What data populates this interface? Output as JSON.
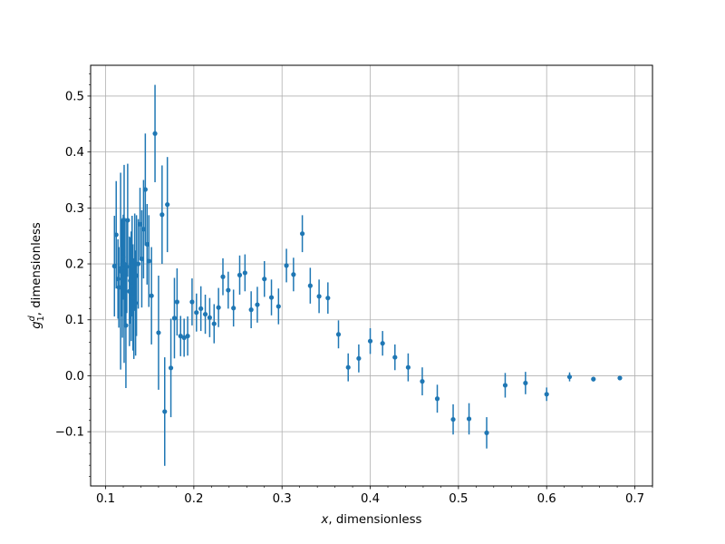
{
  "chart_data": {
    "type": "scatter",
    "title": "",
    "xlabel": {
      "math": "x",
      "text": ", dimensionless"
    },
    "ylabel": {
      "math": "g",
      "sup": "d",
      "sub": "1",
      "text": ", dimensionless"
    },
    "xlim": [
      0.083,
      0.72
    ],
    "ylim": [
      -0.197,
      0.555
    ],
    "x_ticks": [
      0.1,
      0.2,
      0.3,
      0.4,
      0.5,
      0.6,
      0.7
    ],
    "x_tick_labels": [
      "0.1",
      "0.2",
      "0.3",
      "0.4",
      "0.5",
      "0.6",
      "0.7"
    ],
    "y_ticks": [
      -0.1,
      0.0,
      0.1,
      0.2,
      0.3,
      0.4,
      0.5
    ],
    "y_tick_labels": [
      "−0.1",
      "0.0",
      "0.1",
      "0.2",
      "0.3",
      "0.4",
      "0.5"
    ],
    "grid": true,
    "minor_ticks": true,
    "marker_color": "#1f77b4",
    "series": [
      {
        "points": [
          {
            "x": 0.11,
            "y": 0.196,
            "err": 0.09
          },
          {
            "x": 0.112,
            "y": 0.252,
            "err": 0.096
          },
          {
            "x": 0.114,
            "y": 0.173,
            "err": 0.071
          },
          {
            "x": 0.115,
            "y": 0.158,
            "err": 0.072
          },
          {
            "x": 0.117,
            "y": 0.187,
            "err": 0.176
          },
          {
            "x": 0.118,
            "y": 0.193,
            "err": 0.087
          },
          {
            "x": 0.119,
            "y": 0.175,
            "err": 0.107
          },
          {
            "x": 0.12,
            "y": 0.212,
            "err": 0.076
          },
          {
            "x": 0.121,
            "y": 0.2,
            "err": 0.177
          },
          {
            "x": 0.122,
            "y": 0.186,
            "err": 0.096
          },
          {
            "x": 0.123,
            "y": 0.09,
            "err": 0.112
          },
          {
            "x": 0.124,
            "y": 0.195,
            "err": 0.083
          },
          {
            "x": 0.125,
            "y": 0.278,
            "err": 0.101
          },
          {
            "x": 0.127,
            "y": 0.151,
            "err": 0.098
          },
          {
            "x": 0.128,
            "y": 0.17,
            "err": 0.077
          },
          {
            "x": 0.129,
            "y": 0.16,
            "err": 0.098
          },
          {
            "x": 0.13,
            "y": 0.196,
            "err": 0.09
          },
          {
            "x": 0.131,
            "y": 0.14,
            "err": 0.095
          },
          {
            "x": 0.132,
            "y": 0.12,
            "err": 0.09
          },
          {
            "x": 0.133,
            "y": 0.205,
            "err": 0.085
          },
          {
            "x": 0.134,
            "y": 0.13,
            "err": 0.094
          },
          {
            "x": 0.135,
            "y": 0.179,
            "err": 0.108
          },
          {
            "x": 0.137,
            "y": 0.2,
            "err": 0.08
          },
          {
            "x": 0.139,
            "y": 0.271,
            "err": 0.065
          },
          {
            "x": 0.141,
            "y": 0.209,
            "err": 0.087
          },
          {
            "x": 0.143,
            "y": 0.262,
            "err": 0.088
          },
          {
            "x": 0.145,
            "y": 0.333,
            "err": 0.1
          },
          {
            "x": 0.147,
            "y": 0.235,
            "err": 0.072
          },
          {
            "x": 0.149,
            "y": 0.205,
            "err": 0.082
          },
          {
            "x": 0.152,
            "y": 0.143,
            "err": 0.087
          },
          {
            "x": 0.156,
            "y": 0.433,
            "err": 0.087
          },
          {
            "x": 0.16,
            "y": 0.077,
            "err": 0.102
          },
          {
            "x": 0.164,
            "y": 0.288,
            "err": 0.088
          },
          {
            "x": 0.167,
            "y": -0.064,
            "err": 0.097
          },
          {
            "x": 0.17,
            "y": 0.306,
            "err": 0.085
          },
          {
            "x": 0.174,
            "y": 0.014,
            "err": 0.088
          },
          {
            "x": 0.178,
            "y": 0.103,
            "err": 0.072
          },
          {
            "x": 0.181,
            "y": 0.132,
            "err": 0.06
          },
          {
            "x": 0.185,
            "y": 0.071,
            "err": 0.036
          },
          {
            "x": 0.189,
            "y": 0.068,
            "err": 0.034
          },
          {
            "x": 0.193,
            "y": 0.071,
            "err": 0.035
          },
          {
            "x": 0.198,
            "y": 0.132,
            "err": 0.042
          },
          {
            "x": 0.203,
            "y": 0.113,
            "err": 0.034
          },
          {
            "x": 0.208,
            "y": 0.12,
            "err": 0.04
          },
          {
            "x": 0.213,
            "y": 0.11,
            "err": 0.035
          },
          {
            "x": 0.218,
            "y": 0.104,
            "err": 0.035
          },
          {
            "x": 0.223,
            "y": 0.093,
            "err": 0.035
          },
          {
            "x": 0.228,
            "y": 0.122,
            "err": 0.035
          },
          {
            "x": 0.233,
            "y": 0.177,
            "err": 0.033
          },
          {
            "x": 0.239,
            "y": 0.153,
            "err": 0.033
          },
          {
            "x": 0.245,
            "y": 0.121,
            "err": 0.033
          },
          {
            "x": 0.252,
            "y": 0.18,
            "err": 0.035
          },
          {
            "x": 0.258,
            "y": 0.184,
            "err": 0.033
          },
          {
            "x": 0.265,
            "y": 0.118,
            "err": 0.033
          },
          {
            "x": 0.272,
            "y": 0.127,
            "err": 0.032
          },
          {
            "x": 0.28,
            "y": 0.173,
            "err": 0.032
          },
          {
            "x": 0.288,
            "y": 0.14,
            "err": 0.032
          },
          {
            "x": 0.296,
            "y": 0.124,
            "err": 0.032
          },
          {
            "x": 0.305,
            "y": 0.197,
            "err": 0.03
          },
          {
            "x": 0.313,
            "y": 0.181,
            "err": 0.03
          },
          {
            "x": 0.323,
            "y": 0.254,
            "err": 0.033
          },
          {
            "x": 0.332,
            "y": 0.161,
            "err": 0.032
          },
          {
            "x": 0.342,
            "y": 0.142,
            "err": 0.03
          },
          {
            "x": 0.352,
            "y": 0.139,
            "err": 0.028
          },
          {
            "x": 0.364,
            "y": 0.074,
            "err": 0.025
          },
          {
            "x": 0.375,
            "y": 0.015,
            "err": 0.025
          },
          {
            "x": 0.387,
            "y": 0.031,
            "err": 0.025
          },
          {
            "x": 0.4,
            "y": 0.062,
            "err": 0.023
          },
          {
            "x": 0.414,
            "y": 0.058,
            "err": 0.022
          },
          {
            "x": 0.428,
            "y": 0.033,
            "err": 0.023
          },
          {
            "x": 0.443,
            "y": 0.015,
            "err": 0.025
          },
          {
            "x": 0.459,
            "y": -0.01,
            "err": 0.025
          },
          {
            "x": 0.476,
            "y": -0.041,
            "err": 0.025
          },
          {
            "x": 0.494,
            "y": -0.078,
            "err": 0.027
          },
          {
            "x": 0.512,
            "y": -0.077,
            "err": 0.028
          },
          {
            "x": 0.532,
            "y": -0.102,
            "err": 0.028
          },
          {
            "x": 0.553,
            "y": -0.017,
            "err": 0.022
          },
          {
            "x": 0.576,
            "y": -0.013,
            "err": 0.02
          },
          {
            "x": 0.6,
            "y": -0.033,
            "err": 0.012
          },
          {
            "x": 0.626,
            "y": -0.002,
            "err": 0.008
          },
          {
            "x": 0.653,
            "y": -0.006,
            "err": 0.004
          },
          {
            "x": 0.683,
            "y": -0.004,
            "err": 0.003
          }
        ]
      }
    ]
  }
}
